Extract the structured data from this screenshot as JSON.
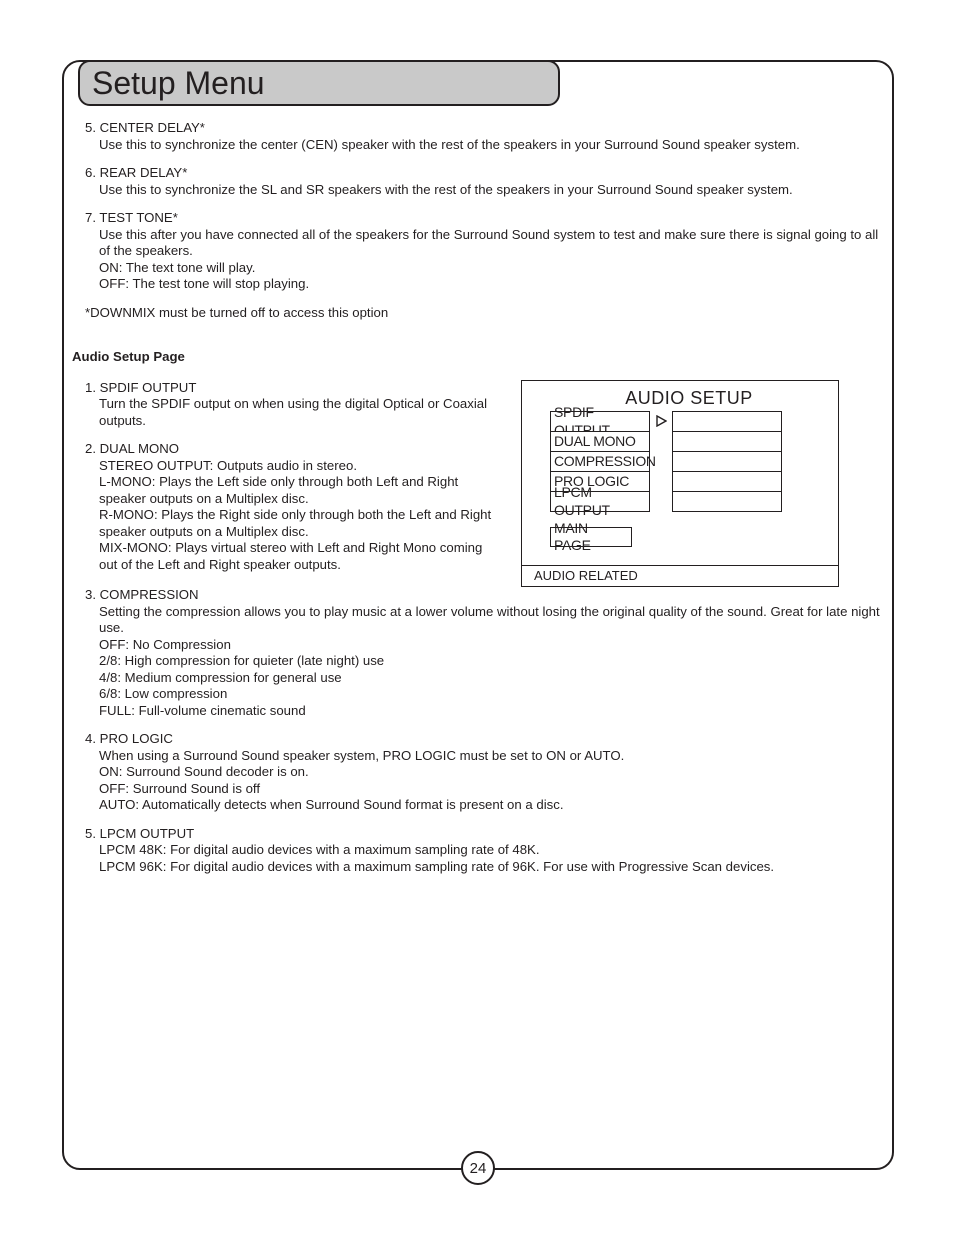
{
  "page": {
    "title": "Setup Menu",
    "number": "24"
  },
  "top_items": [
    {
      "num": "5.",
      "title": "CENTER DELAY*",
      "lines": [
        "Use this to synchronize the center (CEN) speaker with the rest of the speakers in your Surround Sound speaker system."
      ]
    },
    {
      "num": "6.",
      "title": "REAR DELAY*",
      "lines": [
        "Use this to synchronize the SL and SR speakers with the rest of the speakers in your Surround Sound speaker system."
      ]
    },
    {
      "num": "7.",
      "title": "TEST TONE*",
      "lines": [
        "Use this after you have connected all of the speakers for the Surround Sound system to test and make sure there is signal going to all of the speakers.",
        "ON: The text tone will play.",
        "OFF: The test tone will stop playing."
      ]
    }
  ],
  "note": "*DOWNMIX must be turned off to access this option",
  "section_heading": "Audio Setup Page",
  "left_items_a": [
    {
      "num": "1.",
      "title": "SPDIF OUTPUT",
      "lines": [
        "Turn the SPDIF output on when using the digital Optical or Coaxial outputs."
      ]
    },
    {
      "num": "2.",
      "title": "DUAL MONO",
      "lines": [
        "STEREO OUTPUT: Outputs audio in stereo.",
        "L-MONO: Plays the Left side only through both Left and Right speaker outputs on a Multiplex disc.",
        "R-MONO: Plays the Right side only through both the Left and Right speaker outputs on a Multiplex disc.",
        "MIX-MONO: Plays virtual stereo with Left and Right Mono coming out of the Left and Right speaker outputs."
      ]
    }
  ],
  "full_items": [
    {
      "num": "3.",
      "title": "COMPRESSION",
      "lines": [
        "Setting the compression allows you to play music at a lower volume without losing the original quality of the sound. Great for late night use.",
        "OFF: No Compression",
        "2/8: High compression for quieter (late night) use",
        "4/8: Medium compression for general use",
        "6/8: Low compression",
        "FULL: Full-volume cinematic sound"
      ]
    },
    {
      "num": "4.",
      "title": "PRO LOGIC",
      "lines": [
        "When using a Surround Sound speaker system, PRO LOGIC must be set to ON or AUTO.",
        "ON: Surround Sound decoder is on.",
        "OFF: Surround Sound is off",
        "AUTO: Automatically detects when Surround Sound format is present on a disc."
      ]
    },
    {
      "num": "5.",
      "title": "LPCM OUTPUT",
      "lines": [
        "LPCM 48K: For digital audio devices with a maximum sampling rate of 48K.",
        "LPCM 96K: For digital audio devices with a maximum sampling rate of 96K. For use with Progressive Scan devices."
      ]
    }
  ],
  "osd": {
    "title": "AUDIO SETUP",
    "rows": [
      "SPDIF OUTPUT",
      "DUAL MONO",
      "COMPRESSION",
      "PRO LOGIC",
      "LPCM OUTPUT"
    ],
    "selected_index": 0,
    "main": "MAIN PAGE",
    "footer": "AUDIO RELATED"
  }
}
